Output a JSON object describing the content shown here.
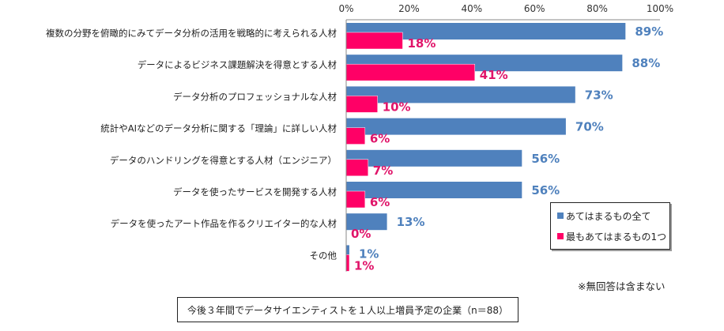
{
  "chart_data": {
    "type": "bar",
    "orientation": "horizontal",
    "title": "",
    "xlabel": "",
    "ylabel": "",
    "xlim": [
      0,
      100
    ],
    "x_ticks": [
      "0%",
      "20%",
      "40%",
      "60%",
      "80%",
      "100%"
    ],
    "x_tick_values": [
      0,
      20,
      40,
      60,
      80,
      100
    ],
    "grid": false,
    "categories": [
      "複数の分野を俯瞰的にみてデータ分析の活用を戦略的に考えられる人材",
      "データによるビジネス課題解決を得意とする人材",
      "データ分析のプロフェッショナルな人材",
      "統計やAIなどのデータ分析に関する「理論」に詳しい人材",
      "データのハンドリングを得意とする人材（エンジニア）",
      "データを使ったサービスを開発する人材",
      "データを使ったアート作品を作るクリエイター的な人材",
      "その他"
    ],
    "series": [
      {
        "name": "あてはまるもの全て",
        "color": "#4f81bd",
        "values": [
          89,
          88,
          73,
          70,
          56,
          56,
          13,
          1
        ],
        "labels": [
          "89%",
          "88%",
          "73%",
          "70%",
          "56%",
          "56%",
          "13%",
          "1%"
        ]
      },
      {
        "name": "最もあてはまるもの1つ",
        "color": "#ff0066",
        "label_color": "#e0156a",
        "values": [
          18,
          41,
          10,
          6,
          7,
          6,
          0,
          1
        ],
        "labels": [
          "18%",
          "41%",
          "10%",
          "6%",
          "7%",
          "6%",
          "0%",
          "1%"
        ]
      }
    ],
    "legend_position": "bottom-right",
    "note": "※無回答は含まない",
    "footer": "今後３年間でデータサイエンティストを１人以上増員予定の企業（n＝88）"
  }
}
